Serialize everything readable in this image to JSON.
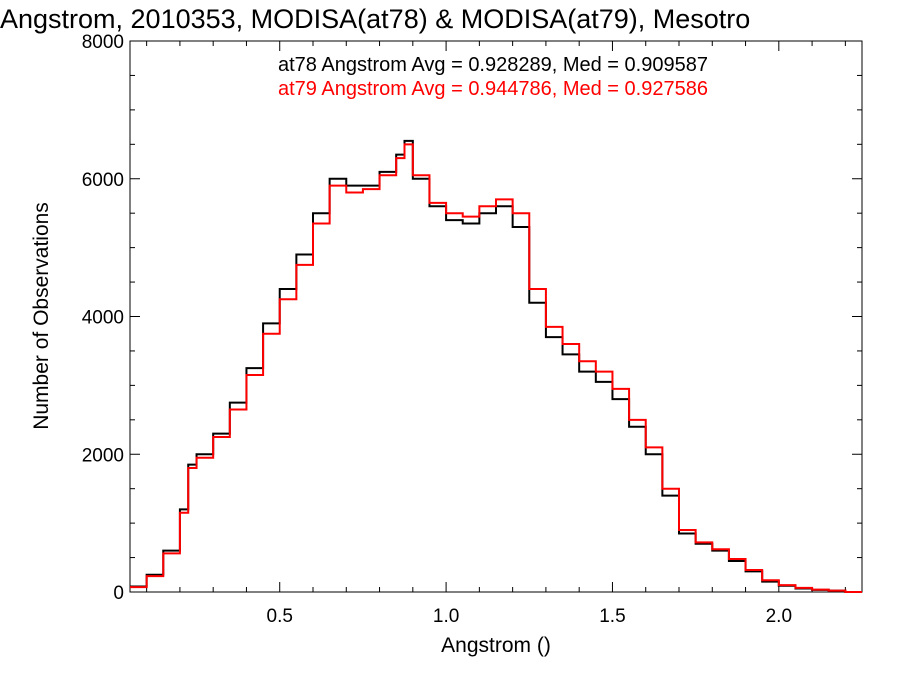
{
  "chart_data": {
    "type": "line",
    "style": "histogram-step",
    "title": "Angstrom, 2010353, MODISA(at78) & MODISA(at79), Mesotro",
    "xlabel": "Angstrom ()",
    "ylabel": "Number of Observations",
    "xlim": [
      0.05,
      2.25
    ],
    "ylim": [
      0,
      8000
    ],
    "x_ticks": [
      0.5,
      1.0,
      1.5,
      2.0
    ],
    "x_tick_labels": [
      "0.5",
      "1.0",
      "1.5",
      "2.0"
    ],
    "y_ticks": [
      0,
      2000,
      4000,
      6000,
      8000
    ],
    "y_tick_labels": [
      "0",
      "2000",
      "4000",
      "6000",
      "8000"
    ],
    "grid": false,
    "stats": [
      {
        "text": "at78 Angstrom Avg = 0.928289, Med = 0.909587",
        "color": "#000000"
      },
      {
        "text": "at79 Angstrom Avg = 0.944786, Med = 0.927586",
        "color": "#ff0000"
      }
    ],
    "series": [
      {
        "color": "#000000",
        "x": [
          0.05,
          0.1,
          0.15,
          0.2,
          0.225,
          0.25,
          0.3,
          0.35,
          0.4,
          0.45,
          0.5,
          0.55,
          0.6,
          0.65,
          0.7,
          0.75,
          0.8,
          0.85,
          0.875,
          0.9,
          0.95,
          1.0,
          1.05,
          1.1,
          1.15,
          1.2,
          1.25,
          1.3,
          1.35,
          1.4,
          1.45,
          1.5,
          1.55,
          1.6,
          1.65,
          1.7,
          1.75,
          1.8,
          1.85,
          1.9,
          1.95,
          2.0,
          2.05,
          2.1,
          2.15,
          2.2
        ],
        "values": [
          80,
          250,
          600,
          1200,
          1850,
          2000,
          2300,
          2750,
          3250,
          3900,
          4400,
          4900,
          5500,
          6000,
          5900,
          5900,
          6100,
          6350,
          6550,
          6000,
          5600,
          5400,
          5350,
          5500,
          5600,
          5300,
          4200,
          3700,
          3450,
          3200,
          3050,
          2800,
          2400,
          2000,
          1400,
          850,
          700,
          600,
          450,
          300,
          150,
          90,
          50,
          30,
          20,
          0
        ]
      },
      {
        "color": "#ff0000",
        "x": [
          0.05,
          0.1,
          0.15,
          0.2,
          0.225,
          0.25,
          0.3,
          0.35,
          0.4,
          0.45,
          0.5,
          0.55,
          0.6,
          0.65,
          0.7,
          0.75,
          0.8,
          0.85,
          0.875,
          0.9,
          0.95,
          1.0,
          1.05,
          1.1,
          1.15,
          1.2,
          1.25,
          1.3,
          1.35,
          1.4,
          1.45,
          1.5,
          1.55,
          1.6,
          1.65,
          1.7,
          1.75,
          1.8,
          1.85,
          1.9,
          1.95,
          2.0,
          2.05,
          2.1,
          2.15,
          2.2
        ],
        "values": [
          70,
          230,
          560,
          1150,
          1800,
          1950,
          2250,
          2650,
          3150,
          3750,
          4250,
          4750,
          5350,
          5900,
          5800,
          5850,
          6050,
          6300,
          6500,
          6050,
          5650,
          5500,
          5450,
          5600,
          5700,
          5500,
          4400,
          3850,
          3600,
          3350,
          3200,
          2950,
          2500,
          2100,
          1500,
          900,
          720,
          620,
          480,
          320,
          170,
          100,
          60,
          35,
          20,
          0
        ]
      }
    ]
  }
}
